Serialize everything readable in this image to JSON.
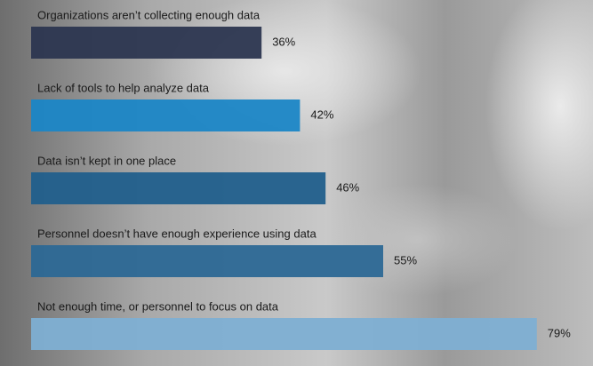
{
  "chart_data": {
    "type": "hbar",
    "categories": [
      "Organizations aren’t collecting enough data",
      "Lack of tools to help analyze data",
      "Data isn’t kept in one place",
      "Personnel doesn’t have enough experience using data",
      "Not enough time, or personnel to focus on data"
    ],
    "values": [
      36,
      42,
      46,
      55,
      79
    ],
    "value_labels": [
      "36%",
      "42%",
      "46%",
      "55%",
      "79%"
    ],
    "colors": [
      "#2c3650",
      "#1b86c6",
      "#215f8c",
      "#2c6895",
      "#7eafd3"
    ]
  }
}
